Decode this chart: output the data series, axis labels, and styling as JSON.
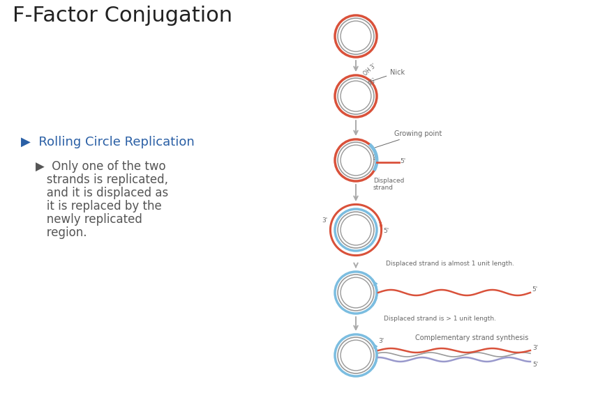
{
  "title": "F-Factor Conjugation",
  "title_fontsize": 22,
  "title_color": "#222222",
  "bullet1_text": "▶  Rolling Circle Replication",
  "bullet1_fontsize": 13,
  "bullet1_color": "#2a5fa5",
  "bullet2_lines": [
    "    ▶  Only one of the two",
    "       strands is replicated,",
    "       and it is displaced as",
    "       it is replaced by the",
    "       newly replicated",
    "       region."
  ],
  "bullet2_fontsize": 12,
  "bullet2_color": "#555555",
  "red_color": "#d9513a",
  "blue_color": "#7bbde0",
  "gray_color": "#999999",
  "dark_gray": "#666666",
  "arrow_gray": "#aaaaaa",
  "purple_color": "#9999cc",
  "background": "#ffffff",
  "fig_w": 8.47,
  "fig_h": 5.77,
  "dpi": 100
}
